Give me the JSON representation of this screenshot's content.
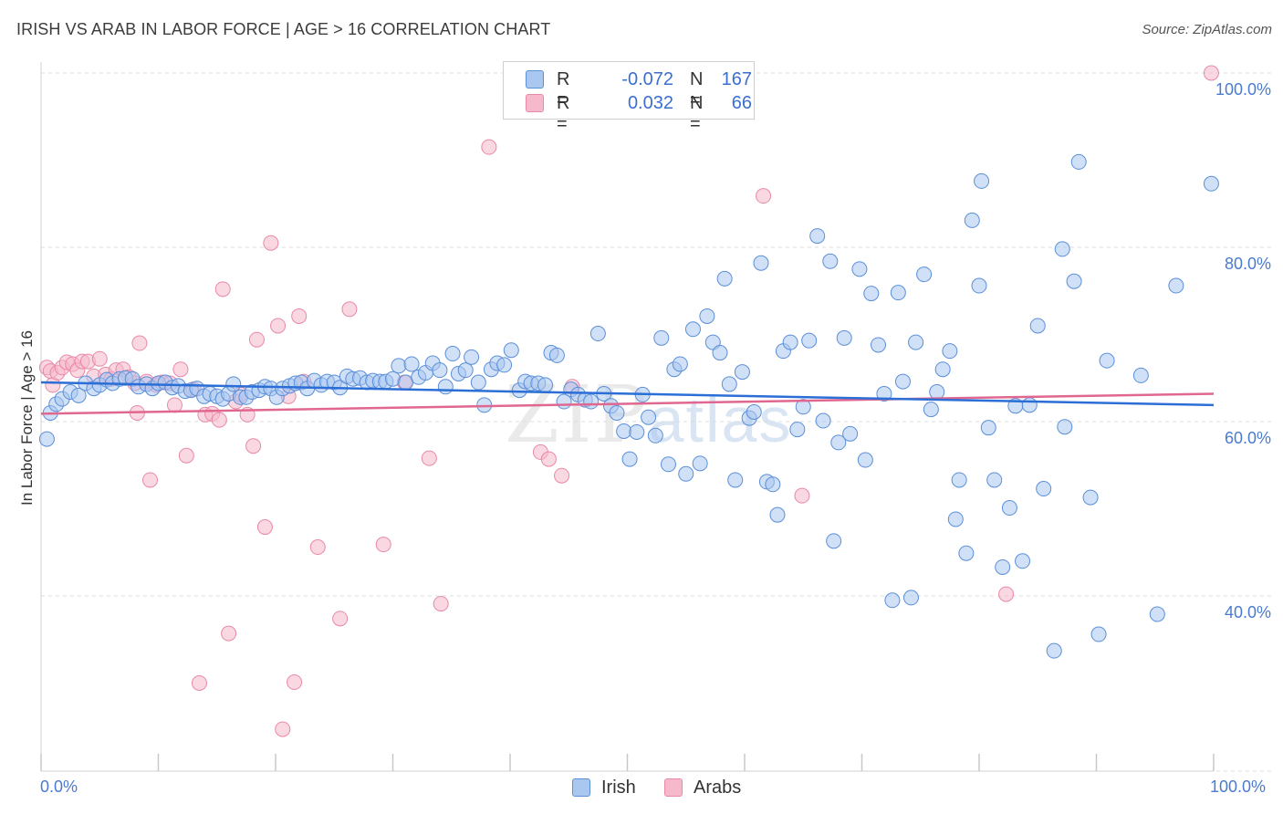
{
  "header": {
    "title": "IRISH VS ARAB IN LABOR FORCE | AGE > 16 CORRELATION CHART",
    "source": "Source: ZipAtlas.com"
  },
  "legend": {
    "rows": [
      {
        "r_label": "R =",
        "r_value": "-0.072",
        "n_label": "N =",
        "n_value": "167",
        "color": "#aac7f0"
      },
      {
        "r_label": "R =",
        "r_value": "0.032",
        "n_label": "N =",
        "n_value": "66",
        "color": "#f6b8cb"
      }
    ]
  },
  "bottom_legend": [
    {
      "label": "Irish",
      "color": "#aac7f0"
    },
    {
      "label": "Arabs",
      "color": "#f6b8cb"
    }
  ],
  "watermark": {
    "part1": "ZIP",
    "part2": "atlas"
  },
  "chart_data": {
    "type": "scatter",
    "ylabel": "In Labor Force | Age > 16",
    "xlim": [
      0,
      100
    ],
    "ylim": [
      20,
      102
    ],
    "x_tick_labels": {
      "left": "0.0%",
      "right": "100.0%"
    },
    "y_ticks": [
      {
        "value": 100,
        "label": "100.0%"
      },
      {
        "value": 80,
        "label": "80.0%"
      },
      {
        "value": 60,
        "label": "60.0%"
      },
      {
        "value": 40,
        "label": "40.0%"
      }
    ],
    "grid": "horizontal dashed",
    "colors": {
      "irish_fill": "#aac7f0",
      "irish_stroke": "#5b8fd8",
      "irish_line": "#2b6fd6",
      "arabs_fill": "#f6b8cb",
      "arabs_stroke": "#e889a8",
      "arabs_line": "#e06890"
    },
    "series": [
      {
        "name": "Irish",
        "trend": {
          "x": [
            0,
            100
          ],
          "y": [
            64.5,
            61.9
          ]
        },
        "points": [
          [
            0.5,
            58
          ],
          [
            0.8,
            61
          ],
          [
            1.3,
            62
          ],
          [
            1.8,
            62.6
          ],
          [
            2.5,
            63.4
          ],
          [
            3.2,
            63
          ],
          [
            3.8,
            64.4
          ],
          [
            4.5,
            63.8
          ],
          [
            5,
            64.2
          ],
          [
            5.6,
            64.8
          ],
          [
            6.1,
            64.4
          ],
          [
            6.7,
            64.9
          ],
          [
            7.2,
            65
          ],
          [
            7.8,
            64.9
          ],
          [
            8.3,
            64
          ],
          [
            9,
            64.3
          ],
          [
            9.5,
            63.8
          ],
          [
            10,
            64.4
          ],
          [
            10.6,
            64.5
          ],
          [
            11.2,
            63.9
          ],
          [
            11.7,
            64.1
          ],
          [
            12.3,
            63.5
          ],
          [
            12.8,
            63.6
          ],
          [
            13.3,
            63.8
          ],
          [
            13.9,
            62.9
          ],
          [
            14.4,
            63.2
          ],
          [
            15,
            62.9
          ],
          [
            15.5,
            62.6
          ],
          [
            16,
            63.2
          ],
          [
            16.4,
            64.3
          ],
          [
            17,
            62.8
          ],
          [
            17.5,
            62.8
          ],
          [
            18,
            63.4
          ],
          [
            18.6,
            63.6
          ],
          [
            19.1,
            64
          ],
          [
            19.6,
            63.8
          ],
          [
            20.1,
            62.8
          ],
          [
            20.6,
            63.8
          ],
          [
            21.2,
            64.1
          ],
          [
            21.7,
            64.4
          ],
          [
            22.2,
            64.5
          ],
          [
            22.7,
            63.8
          ],
          [
            23.3,
            64.7
          ],
          [
            23.9,
            64.2
          ],
          [
            24.4,
            64.6
          ],
          [
            25,
            64.5
          ],
          [
            25.5,
            63.9
          ],
          [
            26.1,
            65.2
          ],
          [
            26.6,
            64.9
          ],
          [
            27.2,
            65
          ],
          [
            27.8,
            64.5
          ],
          [
            28.3,
            64.7
          ],
          [
            28.9,
            64.6
          ],
          [
            29.4,
            64.6
          ],
          [
            30,
            64.9
          ],
          [
            30.5,
            66.4
          ],
          [
            31.1,
            64.5
          ],
          [
            31.6,
            66.6
          ],
          [
            32.2,
            65.1
          ],
          [
            32.8,
            65.6
          ],
          [
            33.4,
            66.7
          ],
          [
            34,
            65.9
          ],
          [
            34.5,
            64
          ],
          [
            35.1,
            67.8
          ],
          [
            35.6,
            65.5
          ],
          [
            36.2,
            65.9
          ],
          [
            36.7,
            67.4
          ],
          [
            37.3,
            64.5
          ],
          [
            37.8,
            61.9
          ],
          [
            38.4,
            66
          ],
          [
            38.9,
            66.7
          ],
          [
            39.5,
            66.5
          ],
          [
            40.1,
            68.2
          ],
          [
            40.8,
            63.6
          ],
          [
            41.3,
            64.6
          ],
          [
            41.8,
            64.4
          ],
          [
            42.4,
            64.4
          ],
          [
            43,
            64.2
          ],
          [
            43.5,
            67.9
          ],
          [
            44,
            67.6
          ],
          [
            44.6,
            62.3
          ],
          [
            45.2,
            63.7
          ],
          [
            45.8,
            63.1
          ],
          [
            46.4,
            62.5
          ],
          [
            46.9,
            62.3
          ],
          [
            47.5,
            70.1
          ],
          [
            48,
            63.2
          ],
          [
            48.6,
            61.8
          ],
          [
            49.1,
            61
          ],
          [
            49.7,
            58.9
          ],
          [
            50.2,
            55.7
          ],
          [
            50.8,
            58.8
          ],
          [
            51.3,
            63.1
          ],
          [
            51.8,
            60.5
          ],
          [
            52.4,
            58.4
          ],
          [
            52.9,
            69.6
          ],
          [
            53.5,
            55.1
          ],
          [
            54,
            66
          ],
          [
            54.5,
            66.6
          ],
          [
            55,
            54
          ],
          [
            55.6,
            70.6
          ],
          [
            56.2,
            55.2
          ],
          [
            56.8,
            72.1
          ],
          [
            57.3,
            69.1
          ],
          [
            57.9,
            67.9
          ],
          [
            58.3,
            76.4
          ],
          [
            58.7,
            64.3
          ],
          [
            59.2,
            53.3
          ],
          [
            59.8,
            65.7
          ],
          [
            60.4,
            60.4
          ],
          [
            60.8,
            61.1
          ],
          [
            61.4,
            78.2
          ],
          [
            61.9,
            53.1
          ],
          [
            62.4,
            52.8
          ],
          [
            62.8,
            49.3
          ],
          [
            63.3,
            68.1
          ],
          [
            63.9,
            69.1
          ],
          [
            64.5,
            59.1
          ],
          [
            65,
            61.7
          ],
          [
            65.5,
            69.3
          ],
          [
            66.2,
            81.3
          ],
          [
            66.7,
            60.1
          ],
          [
            67.3,
            78.4
          ],
          [
            67.6,
            46.3
          ],
          [
            68,
            57.6
          ],
          [
            68.5,
            69.6
          ],
          [
            69,
            58.6
          ],
          [
            69.8,
            77.5
          ],
          [
            70.3,
            55.6
          ],
          [
            70.8,
            74.7
          ],
          [
            71.4,
            68.8
          ],
          [
            71.9,
            63.2
          ],
          [
            72.6,
            39.5
          ],
          [
            73.1,
            74.8
          ],
          [
            73.5,
            64.6
          ],
          [
            74.2,
            39.8
          ],
          [
            74.6,
            69.1
          ],
          [
            75.3,
            76.9
          ],
          [
            75.9,
            61.4
          ],
          [
            76.4,
            63.4
          ],
          [
            76.9,
            66
          ],
          [
            77.5,
            68.1
          ],
          [
            78,
            48.8
          ],
          [
            78.3,
            53.3
          ],
          [
            78.9,
            44.9
          ],
          [
            79.4,
            83.1
          ],
          [
            80,
            75.6
          ],
          [
            80.2,
            87.6
          ],
          [
            80.8,
            59.3
          ],
          [
            81.3,
            53.3
          ],
          [
            82,
            43.3
          ],
          [
            82.6,
            50.1
          ],
          [
            83.1,
            61.8
          ],
          [
            83.7,
            44
          ],
          [
            84.3,
            61.9
          ],
          [
            85,
            71
          ],
          [
            85.5,
            52.3
          ],
          [
            86.4,
            33.7
          ],
          [
            87.1,
            79.8
          ],
          [
            87.3,
            59.4
          ],
          [
            88.1,
            76.1
          ],
          [
            88.5,
            89.8
          ],
          [
            89.5,
            51.3
          ],
          [
            90.2,
            35.6
          ],
          [
            90.9,
            67
          ],
          [
            93.8,
            65.3
          ],
          [
            95.2,
            37.9
          ],
          [
            96.8,
            75.6
          ],
          [
            99.8,
            87.3
          ]
        ]
      },
      {
        "name": "Arabs",
        "trend": {
          "x": [
            0,
            100
          ],
          "y": [
            60.9,
            63.2
          ]
        },
        "points": [
          [
            0.5,
            66.2
          ],
          [
            0.8,
            65.8
          ],
          [
            1,
            64.2
          ],
          [
            1.4,
            65.6
          ],
          [
            1.8,
            66.2
          ],
          [
            2.2,
            66.8
          ],
          [
            2.7,
            66.6
          ],
          [
            3.1,
            65.9
          ],
          [
            3.5,
            66.9
          ],
          [
            4,
            66.9
          ],
          [
            4.5,
            65.2
          ],
          [
            5,
            67.2
          ],
          [
            5.5,
            65.4
          ],
          [
            6,
            64.9
          ],
          [
            6.4,
            65.9
          ],
          [
            7,
            66
          ],
          [
            7.5,
            65.1
          ],
          [
            8,
            64.4
          ],
          [
            8.2,
            61
          ],
          [
            8.4,
            69
          ],
          [
            9,
            64.6
          ],
          [
            9.3,
            53.3
          ],
          [
            9.8,
            64.2
          ],
          [
            10.3,
            64.5
          ],
          [
            11,
            64.4
          ],
          [
            11.4,
            61.9
          ],
          [
            11.9,
            66
          ],
          [
            12.4,
            56.1
          ],
          [
            13,
            63.7
          ],
          [
            13.5,
            30
          ],
          [
            14,
            60.8
          ],
          [
            14.6,
            60.9
          ],
          [
            15.2,
            60.2
          ],
          [
            15.5,
            75.2
          ],
          [
            16,
            35.7
          ],
          [
            16.6,
            62.3
          ],
          [
            17,
            63.1
          ],
          [
            17.6,
            60.8
          ],
          [
            18.1,
            57.2
          ],
          [
            18.4,
            69.4
          ],
          [
            19.1,
            47.9
          ],
          [
            19.6,
            80.5
          ],
          [
            20.2,
            71
          ],
          [
            20.6,
            24.7
          ],
          [
            21.1,
            62.9
          ],
          [
            21.6,
            30.1
          ],
          [
            22,
            72.1
          ],
          [
            22.4,
            64.6
          ],
          [
            23.6,
            45.6
          ],
          [
            25.5,
            37.4
          ],
          [
            26.3,
            72.9
          ],
          [
            29.2,
            45.9
          ],
          [
            31,
            64.5
          ],
          [
            33.1,
            55.8
          ],
          [
            34.1,
            39.1
          ],
          [
            38.2,
            91.5
          ],
          [
            42.6,
            56.5
          ],
          [
            43.3,
            55.7
          ],
          [
            44.4,
            53.8
          ],
          [
            45.3,
            64
          ],
          [
            61.6,
            85.9
          ],
          [
            64.9,
            51.5
          ],
          [
            82.3,
            40.2
          ],
          [
            99.8,
            100
          ]
        ]
      }
    ]
  }
}
